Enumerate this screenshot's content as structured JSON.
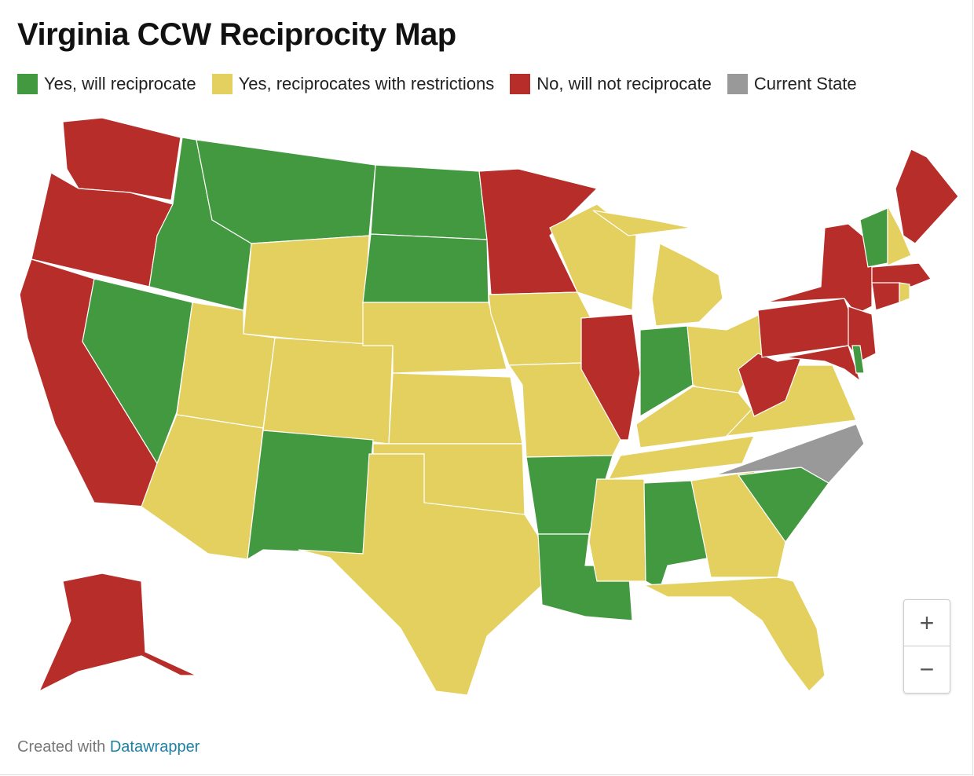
{
  "header": {
    "title": "Virginia CCW Reciprocity Map"
  },
  "legend": [
    {
      "label": "Yes, will reciprocate",
      "color": "#43993f"
    },
    {
      "label": "Yes, reciprocates with restrictions",
      "color": "#e3d05f"
    },
    {
      "label": "No, will not reciprocate",
      "color": "#b72d2a"
    },
    {
      "label": "Current State",
      "color": "#999999"
    }
  ],
  "map": {
    "regions": [
      2,
      2,
      2,
      0,
      0,
      0,
      1,
      1,
      1,
      1,
      0,
      0,
      0,
      1,
      1,
      1,
      1,
      2,
      1,
      1,
      0,
      0,
      1,
      2,
      1,
      0,
      1,
      1,
      1,
      1,
      0,
      1,
      1,
      0,
      3,
      1,
      2,
      2,
      2,
      2,
      2,
      0,
      0,
      1,
      2,
      2,
      2,
      1,
      2
    ]
  },
  "zoom": {
    "in": "+",
    "out": "−"
  },
  "footer": {
    "prefix": "Created with",
    "link": "Datawrapper"
  }
}
